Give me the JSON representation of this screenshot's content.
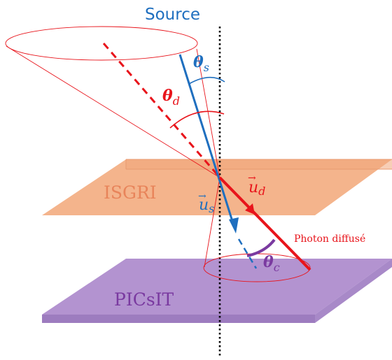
{
  "labels": {
    "source": "Source",
    "isgri": "ISGRI",
    "picsit": "PICsIT",
    "photon": "Photon diffusé",
    "theta_s": "θ",
    "theta_s_sub": "s",
    "theta_d": "θ",
    "theta_d_sub": "d",
    "theta_c": "θ",
    "theta_c_sub": "c",
    "u_d": "u",
    "u_d_sub": "d",
    "u_s": "u",
    "u_s_sub": "s",
    "vec_arrow": "→"
  },
  "colors": {
    "blue": "#1f6fbf",
    "red": "#e8141b",
    "isgri_fill": "#f4b48c",
    "isgri_text": "#e8845a",
    "picsit_fill": "#b393d0",
    "picsit_text": "#7a3aa0",
    "angle_purple": "#7a3aa0",
    "black": "#000000"
  }
}
